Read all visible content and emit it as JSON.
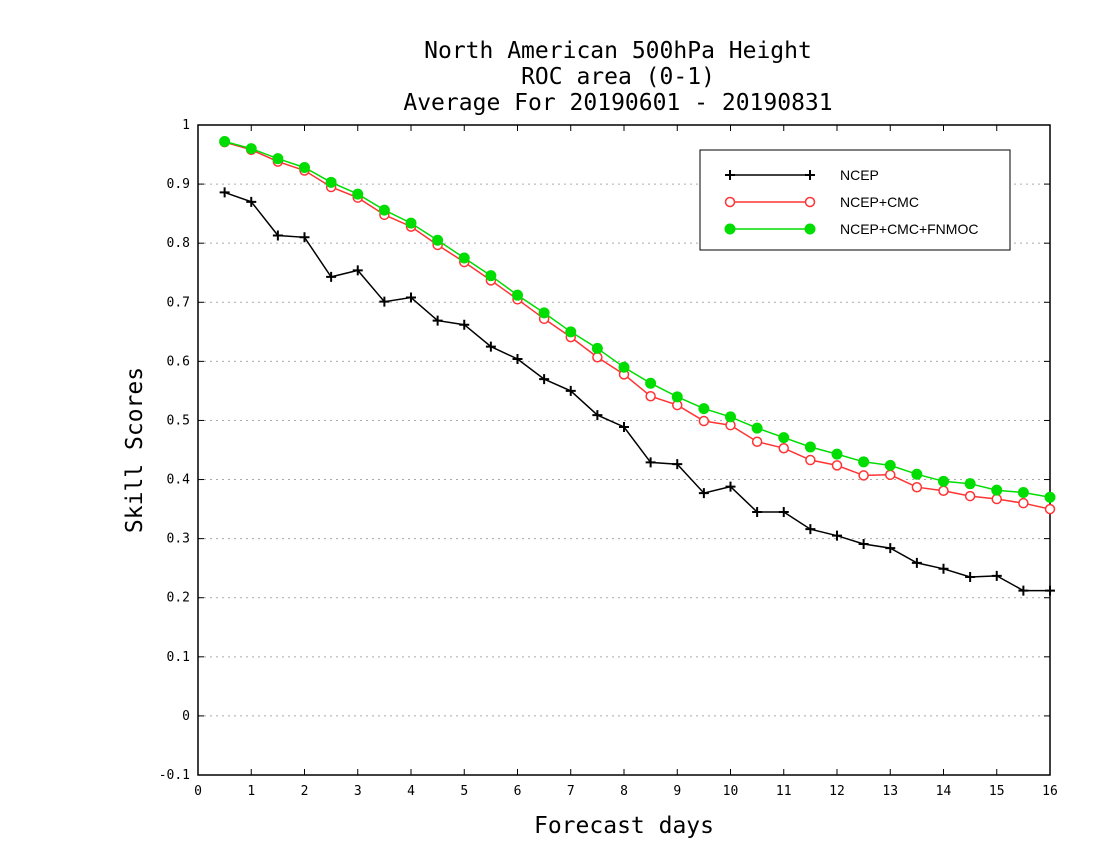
{
  "chart_data": {
    "type": "line",
    "title_lines": [
      "North American 500hPa Height",
      "ROC area (0-1)",
      "Average For 20190601 - 20190831"
    ],
    "xlabel": "Forecast days",
    "ylabel": "Skill Scores",
    "xlim": [
      0,
      16
    ],
    "ylim": [
      -0.1,
      1
    ],
    "x_ticks": [
      0,
      1,
      2,
      3,
      4,
      5,
      6,
      7,
      8,
      9,
      10,
      11,
      12,
      13,
      14,
      15,
      16
    ],
    "y_ticks": [
      -0.1,
      0,
      0.1,
      0.2,
      0.3,
      0.4,
      0.5,
      0.6,
      0.7,
      0.8,
      0.9,
      1
    ],
    "y_tick_labels": [
      "-0.1",
      "0",
      "0.1",
      "0.2",
      "0.3",
      "0.4",
      "0.5",
      "0.6",
      "0.7",
      "0.8",
      "0.9",
      "1"
    ],
    "grid": "horizontal dotted",
    "legend_position": "top-right",
    "x": [
      0.5,
      1.0,
      1.5,
      2.0,
      2.5,
      3.0,
      3.5,
      4.0,
      4.5,
      5.0,
      5.5,
      6.0,
      6.5,
      7.0,
      7.5,
      8.0,
      8.5,
      9.0,
      9.5,
      10.0,
      10.5,
      11.0,
      11.5,
      12.0,
      12.5,
      13.0,
      13.5,
      14.0,
      14.5,
      15.0,
      15.5,
      16.0
    ],
    "series": [
      {
        "name": "NCEP",
        "color": "#000000",
        "marker": "plus",
        "values": [
          0.886,
          0.87,
          0.813,
          0.81,
          0.743,
          0.754,
          0.701,
          0.708,
          0.669,
          0.662,
          0.625,
          0.604,
          0.57,
          0.55,
          0.509,
          0.489,
          0.429,
          0.426,
          0.377,
          0.388,
          0.345,
          0.345,
          0.316,
          0.305,
          0.291,
          0.284,
          0.259,
          0.249,
          0.235,
          0.237,
          0.212,
          0.212
        ]
      },
      {
        "name": "NCEP+CMC",
        "color": "#ff3333",
        "marker": "open-circle",
        "values": [
          0.971,
          0.958,
          0.938,
          0.923,
          0.895,
          0.877,
          0.848,
          0.828,
          0.797,
          0.768,
          0.737,
          0.705,
          0.672,
          0.641,
          0.607,
          0.578,
          0.541,
          0.526,
          0.499,
          0.492,
          0.464,
          0.453,
          0.433,
          0.424,
          0.407,
          0.408,
          0.387,
          0.381,
          0.372,
          0.367,
          0.36,
          0.35
        ]
      },
      {
        "name": "NCEP+CMC+FNMOC",
        "color": "#00dd00",
        "marker": "filled-circle",
        "values": [
          0.972,
          0.96,
          0.943,
          0.928,
          0.903,
          0.883,
          0.856,
          0.834,
          0.805,
          0.775,
          0.745,
          0.712,
          0.682,
          0.65,
          0.622,
          0.59,
          0.563,
          0.54,
          0.52,
          0.506,
          0.487,
          0.471,
          0.455,
          0.443,
          0.43,
          0.424,
          0.409,
          0.397,
          0.393,
          0.382,
          0.378,
          0.37
        ]
      }
    ]
  }
}
